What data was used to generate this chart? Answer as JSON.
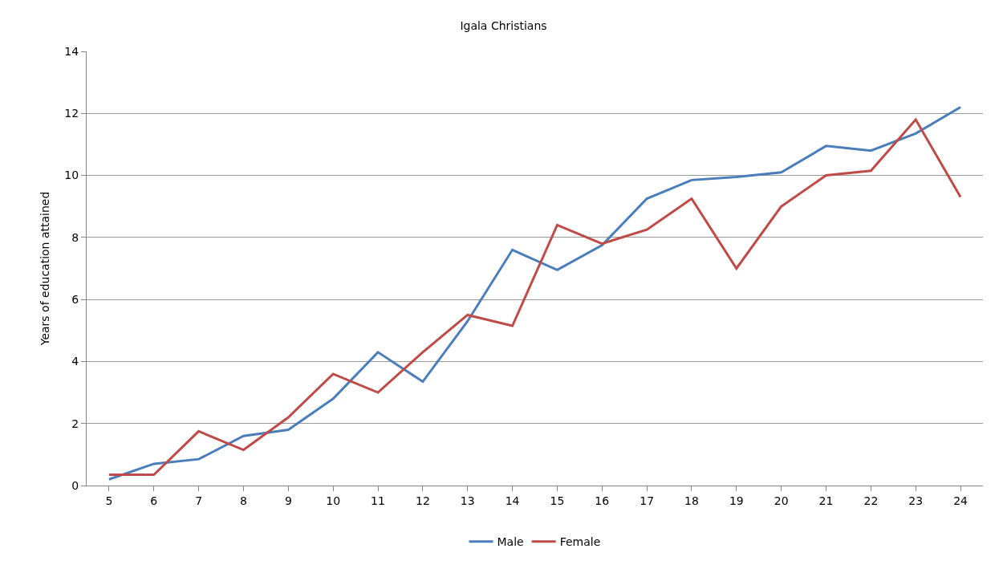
{
  "chart_data": {
    "type": "line",
    "title": "Igala Christians",
    "ylabel": "Years of education attained",
    "categories": [
      "5",
      "6",
      "7",
      "8",
      "9",
      "10",
      "11",
      "12",
      "13",
      "14",
      "15",
      "16",
      "17",
      "18",
      "19",
      "20",
      "21",
      "22",
      "23",
      "24"
    ],
    "series": [
      {
        "name": "Male",
        "color": "#4a7ebb",
        "values": [
          0.2,
          0.7,
          0.85,
          1.6,
          1.8,
          2.8,
          4.3,
          3.35,
          5.3,
          7.6,
          6.95,
          7.75,
          9.25,
          9.85,
          9.95,
          10.1,
          10.95,
          10.8,
          11.35,
          12.2
        ]
      },
      {
        "name": "Female",
        "color": "#be4b48",
        "values": [
          0.35,
          0.35,
          1.75,
          1.15,
          2.2,
          3.6,
          3.0,
          4.3,
          5.5,
          5.15,
          8.4,
          7.8,
          8.25,
          9.25,
          7.0,
          9.0,
          10.0,
          10.15,
          11.8,
          9.3
        ]
      }
    ],
    "ylim": [
      0,
      14
    ],
    "yticks": [
      0,
      2,
      4,
      6,
      8,
      10,
      12,
      14
    ],
    "grid": "y",
    "legend": "bottom",
    "marker": "none",
    "line_style": "solid"
  }
}
